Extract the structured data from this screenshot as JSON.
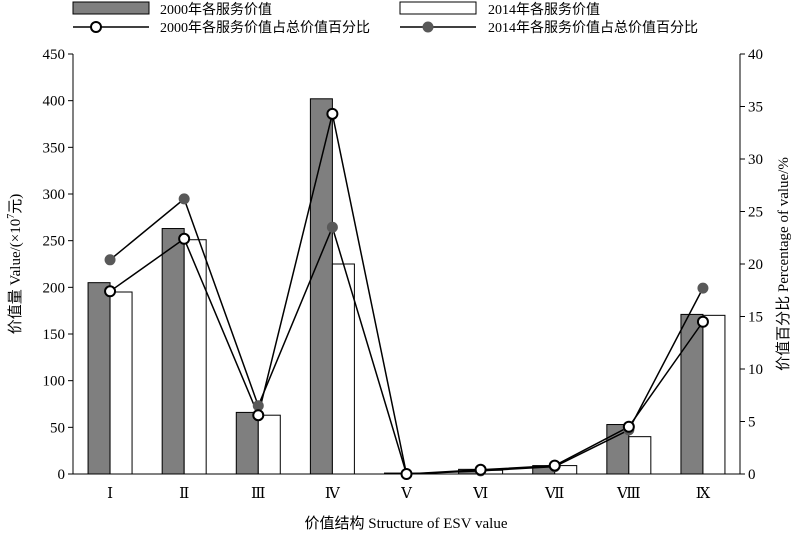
{
  "chart_data": {
    "type": "bar",
    "categories": [
      "Ⅰ",
      "Ⅱ",
      "Ⅲ",
      "Ⅳ",
      "Ⅴ",
      "Ⅵ",
      "Ⅶ",
      "Ⅷ",
      "Ⅸ"
    ],
    "bar_series": [
      {
        "name": "2000年各服务价值",
        "color": "#7f7f7f",
        "values": [
          205,
          263,
          66,
          402,
          1,
          5,
          9,
          53,
          171
        ]
      },
      {
        "name": "2014年各服务价值",
        "color": "#ffffff",
        "values": [
          195,
          251,
          63,
          225,
          1,
          4,
          9,
          40,
          170
        ]
      }
    ],
    "line_series": [
      {
        "name": "2000年各服务价值占总价值百分比",
        "marker": "open-circle",
        "values": [
          17.4,
          22.4,
          5.6,
          34.3,
          0.0,
          0.4,
          0.8,
          4.5,
          14.5
        ]
      },
      {
        "name": "2014年各服务价值占总价值百分比",
        "marker": "filled-circle",
        "color": "#595959",
        "values": [
          20.4,
          26.2,
          6.5,
          23.5,
          0.0,
          0.3,
          0.7,
          4.2,
          17.7
        ]
      }
    ],
    "xlabel": "价值结构 Structure of  ESV value",
    "ylabel_left": {
      "main": "价值量 Value/(×10",
      "sup": "7",
      "after": "元)"
    },
    "ylabel_right": "价值百分比 Percentage of value/%",
    "ylim_left": [
      0,
      450
    ],
    "yticks_left": [
      0,
      50,
      100,
      150,
      200,
      250,
      300,
      350,
      400,
      450
    ],
    "ylim_right": [
      0,
      40
    ],
    "yticks_right": [
      0,
      5,
      10,
      15,
      20,
      25,
      30,
      35,
      40
    ],
    "grid": false,
    "legend_position": "top"
  }
}
